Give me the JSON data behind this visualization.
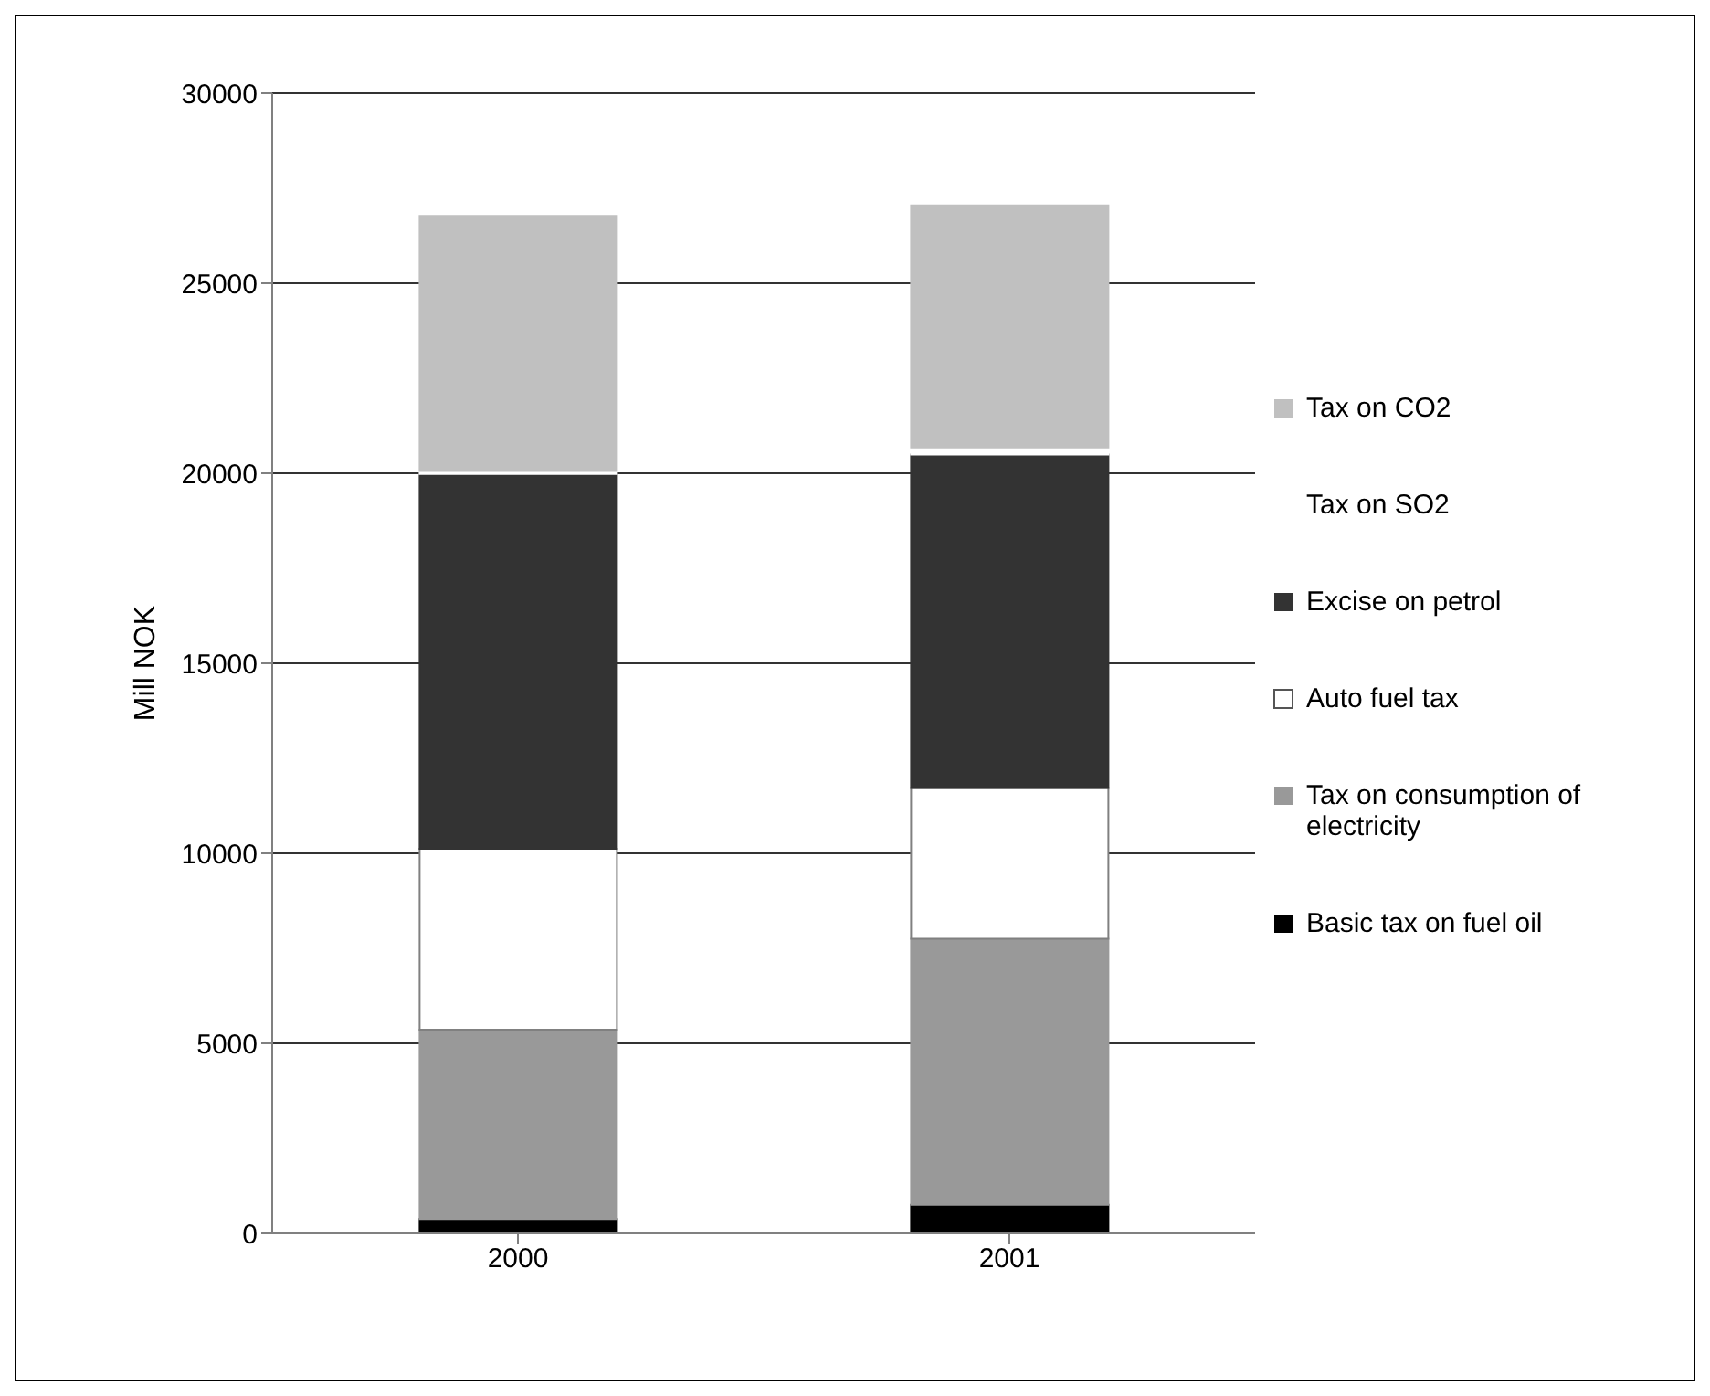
{
  "chart_data": {
    "type": "bar",
    "ylabel": "Mill NOK",
    "categories": [
      "2000",
      "2001"
    ],
    "stacked": true,
    "ylim": [
      0,
      30000
    ],
    "yticks": [
      0,
      5000,
      10000,
      15000,
      20000,
      25000,
      30000
    ],
    "grid": "y",
    "legend": "right",
    "series": [
      {
        "name": "Basic tax on fuel oil",
        "color": "#000000",
        "values": [
          380,
          750
        ]
      },
      {
        "name": "Tax on consumption of electricity",
        "color": "#999999",
        "values": [
          4980,
          7000
        ]
      },
      {
        "name": "Auto fuel tax",
        "color": "#ffffff",
        "values": [
          4760,
          3970
        ]
      },
      {
        "name": "Excise on petrol",
        "color": "#333333",
        "values": [
          9860,
          8770
        ]
      },
      {
        "name": "Tax on SO2",
        "color": "#ffffff",
        "values": [
          80,
          190
        ]
      },
      {
        "name": "Tax on CO2",
        "color": "#c0c0c0",
        "values": [
          6710,
          6370
        ]
      }
    ]
  }
}
